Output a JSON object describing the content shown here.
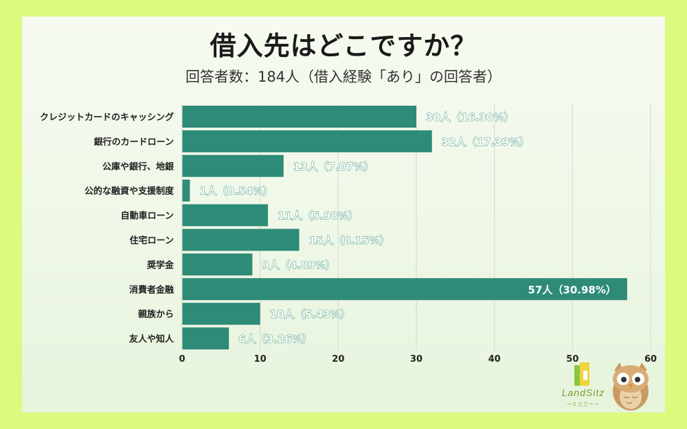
{
  "header": {
    "title": "借入先はどこですか？",
    "subtitle": "回答者数：184人（借入経験「あり」の回答者）"
  },
  "logo": {
    "name": "LandSitz",
    "tagline": "ーミ三三ーー"
  },
  "colors": {
    "bar": "#2e8b78",
    "page_bg": "#dcfb7e",
    "label_outside": "#ffffff",
    "label_stroke": "#2e8b78"
  },
  "chart_data": {
    "type": "bar",
    "orientation": "horizontal",
    "categories": [
      "クレジットカードのキャッシング",
      "銀行のカードローン",
      "公庫や銀行、地銀",
      "公的な融資や支援制度",
      "自動車ローン",
      "住宅ローン",
      "奨学金",
      "消費者金融",
      "親族から",
      "友人や知人"
    ],
    "values": [
      30,
      32,
      13,
      1,
      11,
      15,
      9,
      57,
      10,
      6
    ],
    "data_labels": [
      "30人（16.30%）",
      "32人（17.39%）",
      "13人（7.07%）",
      "1人（0.54%）",
      "11人（5.98%）",
      "15人（8.15%）",
      "9人（4.89%）",
      "57人（30.98%）",
      "10人（5.43%）",
      "6人（3.26%）"
    ],
    "xlim": [
      0,
      60
    ],
    "xticks": [
      0,
      10,
      20,
      30,
      40,
      50,
      60
    ],
    "grid": true,
    "legend": "none"
  }
}
